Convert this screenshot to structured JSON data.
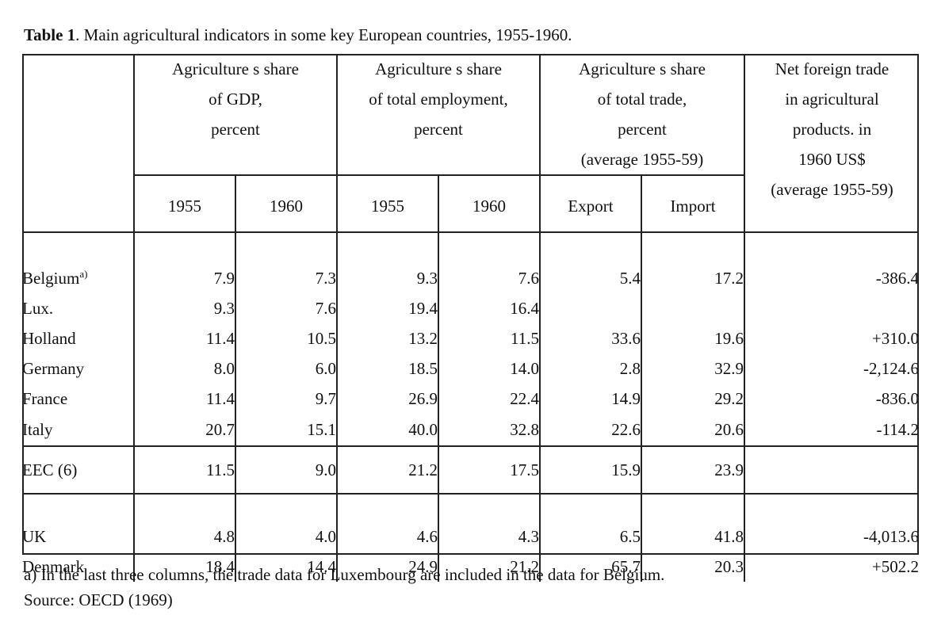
{
  "caption": {
    "label": "Table 1",
    "text": ". Main agricultural indicators in some key European countries, 1955-1960."
  },
  "headers": {
    "gdp": [
      "Agriculture s share",
      "of GDP,",
      "percent"
    ],
    "employment": [
      "Agriculture s share",
      "of total employment,",
      "percent"
    ],
    "trade": [
      "Agriculture s share",
      "of total trade,",
      "percent",
      "(average 1955-59)"
    ],
    "net": [
      "Net foreign trade",
      "in agricultural",
      "products. in",
      "1960 US$",
      "(average 1955-59)"
    ],
    "sub": [
      "1955",
      "1960",
      "1955",
      "1960",
      "Export",
      "Import"
    ]
  },
  "groups": [
    {
      "rows": [
        {
          "country": "Belgium",
          "sup": "a)",
          "gdp55": "7.9",
          "gdp60": "7.3",
          "emp55": "9.3",
          "emp60": "7.6",
          "exp": "5.4",
          "imp": "17.2",
          "net": "-386.4"
        },
        {
          "country": "Lux.",
          "sup": "",
          "gdp55": "9.3",
          "gdp60": "7.6",
          "emp55": "19.4",
          "emp60": "16.4",
          "exp": "",
          "imp": "",
          "net": ""
        },
        {
          "country": "Holland",
          "sup": "",
          "gdp55": "11.4",
          "gdp60": "10.5",
          "emp55": "13.2",
          "emp60": "11.5",
          "exp": "33.6",
          "imp": "19.6",
          "net": "+310.0"
        },
        {
          "country": "Germany",
          "sup": "",
          "gdp55": "8.0",
          "gdp60": "6.0",
          "emp55": "18.5",
          "emp60": "14.0",
          "exp": "2.8",
          "imp": "32.9",
          "net": "-2,124.6"
        },
        {
          "country": "France",
          "sup": "",
          "gdp55": "11.4",
          "gdp60": "9.7",
          "emp55": "26.9",
          "emp60": "22.4",
          "exp": "14.9",
          "imp": "29.2",
          "net": "-836.0"
        },
        {
          "country": "Italy",
          "sup": "",
          "gdp55": "20.7",
          "gdp60": "15.1",
          "emp55": "40.0",
          "emp60": "32.8",
          "exp": "22.6",
          "imp": "20.6",
          "net": "-114.2"
        }
      ]
    },
    {
      "rows": [
        {
          "country": "EEC (6)",
          "sup": "",
          "gdp55": "11.5",
          "gdp60": "9.0",
          "emp55": "21.2",
          "emp60": "17.5",
          "exp": "15.9",
          "imp": "23.9",
          "net": ""
        }
      ]
    },
    {
      "rows": [
        {
          "country": "UK",
          "sup": "",
          "gdp55": "4.8",
          "gdp60": "4.0",
          "emp55": "4.6",
          "emp60": "4.3",
          "exp": "6.5",
          "imp": "41.8",
          "net": "-4,013.6"
        },
        {
          "country": "Denmark",
          "sup": "",
          "gdp55": "18.4",
          "gdp60": "14.4",
          "emp55": "24.9",
          "emp60": "21.2",
          "exp": "65.7",
          "imp": "20.3",
          "net": "+502.2"
        }
      ]
    }
  ],
  "footnote": "a) In the last three columns, the trade data for Luxembourg are included in the data for Belgium.",
  "source": "Source: OECD (1969)"
}
